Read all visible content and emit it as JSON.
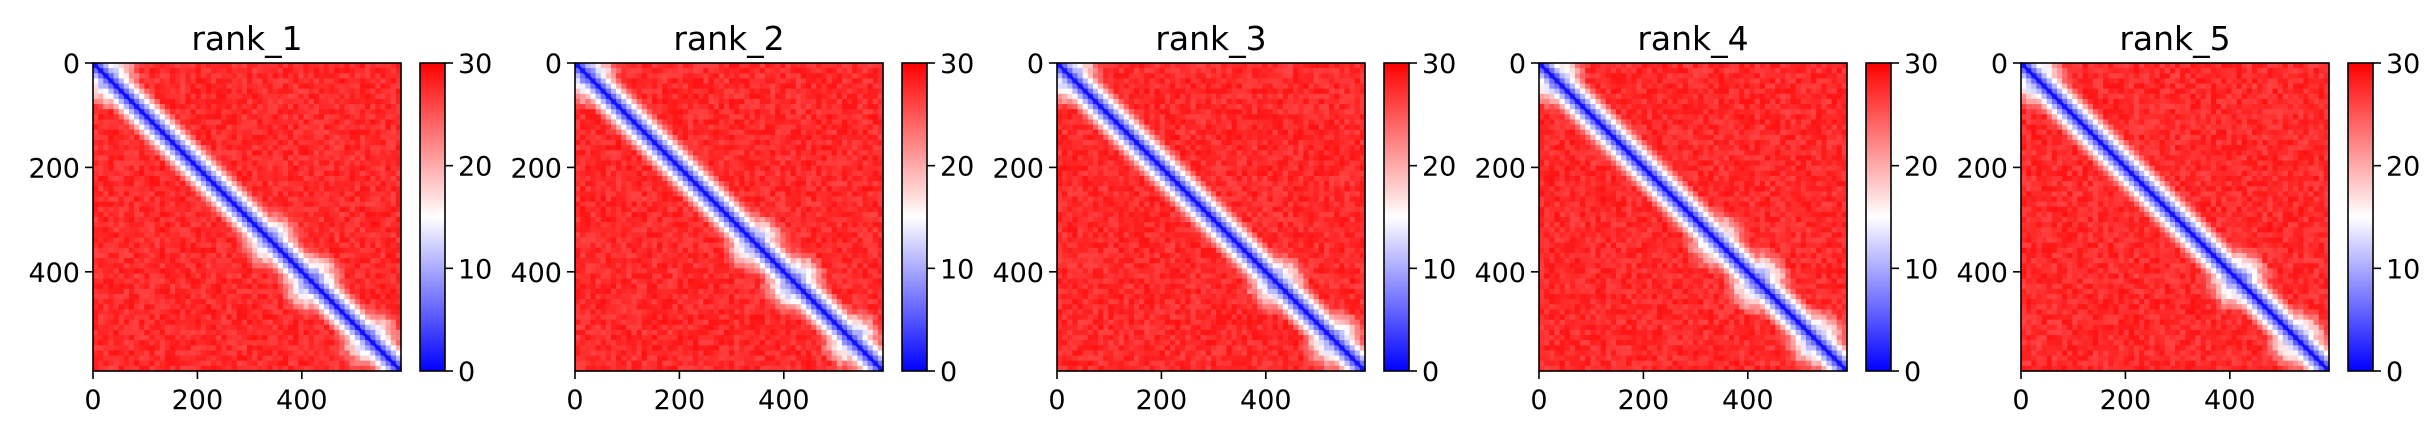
{
  "figure": {
    "colorbar": {
      "min": 0,
      "max": 30,
      "ticks": [
        0,
        10,
        20,
        30
      ],
      "colormap": "bwr",
      "colors": {
        "low": "#0000ff",
        "mid": "#ffffff",
        "high": "#ff0000"
      }
    }
  },
  "chart_data": [
    {
      "type": "heatmap",
      "title": "rank_1",
      "xticks": [
        0,
        200,
        400
      ],
      "yticks": [
        0,
        200,
        400
      ],
      "xlim": [
        0,
        590
      ],
      "ylim": [
        590,
        0
      ],
      "features": {
        "diagonal": "low (blue) values along the main diagonal",
        "clusters": [
          {
            "center": [
              340,
              340
            ],
            "value": 4
          },
          {
            "center": [
              420,
              420
            ],
            "value": 2
          },
          {
            "center": [
              530,
              530
            ],
            "value": 3
          },
          {
            "center": [
              30,
              30
            ],
            "value": 3
          }
        ],
        "background_value": 29
      }
    },
    {
      "type": "heatmap",
      "title": "rank_2",
      "xticks": [
        0,
        200,
        400
      ],
      "yticks": [
        0,
        200,
        400
      ],
      "xlim": [
        0,
        590
      ],
      "ylim": [
        590,
        0
      ],
      "features": {
        "diagonal": "low (blue) values along the main diagonal",
        "clusters": [
          {
            "center": [
              345,
              345
            ],
            "value": 3
          },
          {
            "center": [
              420,
              420
            ],
            "value": 2
          },
          {
            "center": [
              530,
              530
            ],
            "value": 3
          },
          {
            "center": [
              25,
              25
            ],
            "value": 3
          }
        ],
        "background_value": 29
      }
    },
    {
      "type": "heatmap",
      "title": "rank_3",
      "xticks": [
        0,
        200,
        400
      ],
      "yticks": [
        0,
        200,
        400
      ],
      "xlim": [
        0,
        590
      ],
      "ylim": [
        590,
        0
      ],
      "features": {
        "diagonal": "low (blue) values along the main diagonal",
        "clusters": [
          {
            "center": [
              420,
              420
            ],
            "value": 3
          },
          {
            "center": [
              530,
              530
            ],
            "value": 3
          },
          {
            "center": [
              25,
              25
            ],
            "value": 3
          }
        ],
        "background_value": 29
      }
    },
    {
      "type": "heatmap",
      "title": "rank_4",
      "xticks": [
        0,
        200,
        400
      ],
      "yticks": [
        0,
        200,
        400
      ],
      "xlim": [
        0,
        590
      ],
      "ylim": [
        590,
        0
      ],
      "features": {
        "diagonal": "low (blue) values along the main diagonal",
        "clusters": [
          {
            "center": [
              340,
              340
            ],
            "value": 4
          },
          {
            "center": [
              420,
              420
            ],
            "value": 2
          },
          {
            "center": [
              530,
              530
            ],
            "value": 3
          },
          {
            "center": [
              30,
              30
            ],
            "value": 3
          }
        ],
        "background_value": 29
      }
    },
    {
      "type": "heatmap",
      "title": "rank_5",
      "xticks": [
        0,
        200,
        400
      ],
      "yticks": [
        0,
        200,
        400
      ],
      "xlim": [
        0,
        590
      ],
      "ylim": [
        590,
        0
      ],
      "features": {
        "diagonal": "low (blue) values along the main diagonal",
        "clusters": [
          {
            "center": [
              415,
              415
            ],
            "value": 2
          },
          {
            "center": [
              530,
              530
            ],
            "value": 3
          },
          {
            "center": [
              30,
              30
            ],
            "value": 3
          }
        ],
        "background_value": 29
      }
    }
  ]
}
